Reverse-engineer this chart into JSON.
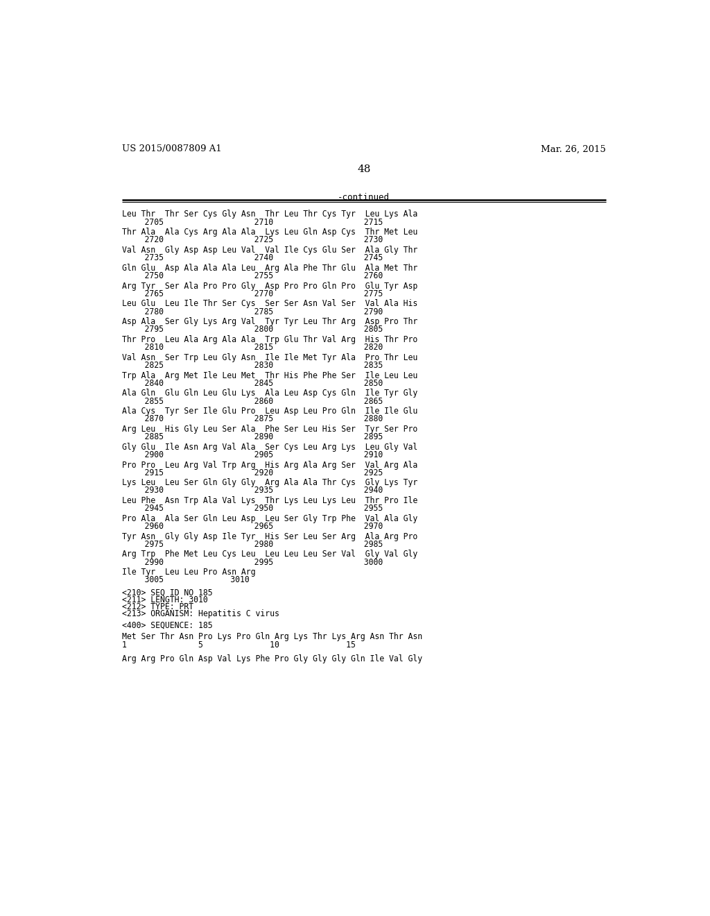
{
  "header_left": "US 2015/0087809 A1",
  "header_right": "Mar. 26, 2015",
  "page_number": "48",
  "continued_label": "-continued",
  "background_color": "#ffffff",
  "text_color": "#000000",
  "seq_lines": [
    [
      "Leu Thr  Thr Ser Cys Gly Asn  Thr Leu Thr Cys Tyr  Leu Lys Ala",
      "    2705                   2710                   2715"
    ],
    [
      "Thr Ala  Ala Cys Arg Ala Ala  Lys Leu Gln Asp Cys  Thr Met Leu",
      "    2720                   2725                   2730"
    ],
    [
      "Val Asn  Gly Asp Asp Leu Val  Val Ile Cys Glu Ser  Ala Gly Thr",
      "    2735                   2740                   2745"
    ],
    [
      "Gln Glu  Asp Ala Ala Ala Leu  Arg Ala Phe Thr Glu  Ala Met Thr",
      "    2750                   2755                   2760"
    ],
    [
      "Arg Tyr  Ser Ala Pro Pro Gly  Asp Pro Pro Gln Pro  Glu Tyr Asp",
      "    2765                   2770                   2775"
    ],
    [
      "Leu Glu  Leu Ile Thr Ser Cys  Ser Ser Asn Val Ser  Val Ala His",
      "    2780                   2785                   2790"
    ],
    [
      "Asp Ala  Ser Gly Lys Arg Val  Tyr Tyr Leu Thr Arg  Asp Pro Thr",
      "    2795                   2800                   2805"
    ],
    [
      "Thr Pro  Leu Ala Arg Ala Ala  Trp Glu Thr Val Arg  His Thr Pro",
      "    2810                   2815                   2820"
    ],
    [
      "Val Asn  Ser Trp Leu Gly Asn  Ile Ile Met Tyr Ala  Pro Thr Leu",
      "    2825                   2830                   2835"
    ],
    [
      "Trp Ala  Arg Met Ile Leu Met  Thr His Phe Phe Ser  Ile Leu Leu",
      "    2840                   2845                   2850"
    ],
    [
      "Ala Gln  Glu Gln Leu Glu Lys  Ala Leu Asp Cys Gln  Ile Tyr Gly",
      "    2855                   2860                   2865"
    ],
    [
      "Ala Cys  Tyr Ser Ile Glu Pro  Leu Asp Leu Pro Gln  Ile Ile Glu",
      "    2870                   2875                   2880"
    ],
    [
      "Arg Leu  His Gly Leu Ser Ala  Phe Ser Leu His Ser  Tyr Ser Pro",
      "    2885                   2890                   2895"
    ],
    [
      "Gly Glu  Ile Asn Arg Val Ala  Ser Cys Leu Arg Lys  Leu Gly Val",
      "    2900                   2905                   2910"
    ],
    [
      "Pro Pro  Leu Arg Val Trp Arg  His Arg Ala Arg Ser  Val Arg Ala",
      "    2915                   2920                   2925"
    ],
    [
      "Lys Leu  Leu Ser Gln Gly Gly  Arg Ala Ala Thr Cys  Gly Lys Tyr",
      "    2930                   2935                   2940"
    ],
    [
      "Leu Phe  Asn Trp Ala Val Lys  Thr Lys Leu Lys Leu  Thr Pro Ile",
      "    2945                   2950                   2955"
    ],
    [
      "Pro Ala  Ala Ser Gln Leu Asp  Leu Ser Gly Trp Phe  Val Ala Gly",
      "    2960                   2965                   2970"
    ],
    [
      "Tyr Asn  Gly Gly Asp Ile Tyr  His Ser Leu Ser Arg  Ala Arg Pro",
      "    2975                   2980                   2985"
    ],
    [
      "Arg Trp  Phe Met Leu Cys Leu  Leu Leu Leu Ser Val  Gly Val Gly",
      "    2990                   2995                   3000"
    ],
    [
      "Ile Tyr  Leu Leu Pro Asn Arg",
      "    3005              3010"
    ]
  ],
  "meta_lines": [
    "<210> SEQ ID NO 185",
    "<211> LENGTH: 3010",
    "<212> TYPE: PRT",
    "<213> ORGANISM: Hepatitis C virus"
  ],
  "seq400_label": "<400> SEQUENCE: 185",
  "seq185_aa": "Met Ser Thr Asn Pro Lys Pro Gln Arg Lys Thr Lys Arg Asn Thr Asn",
  "seq185_num": "1               5              10              15",
  "seq185_last": "Arg Arg Pro Gln Asp Val Lys Phe Pro Gly Gly Gly Gln Ile Val Gly"
}
